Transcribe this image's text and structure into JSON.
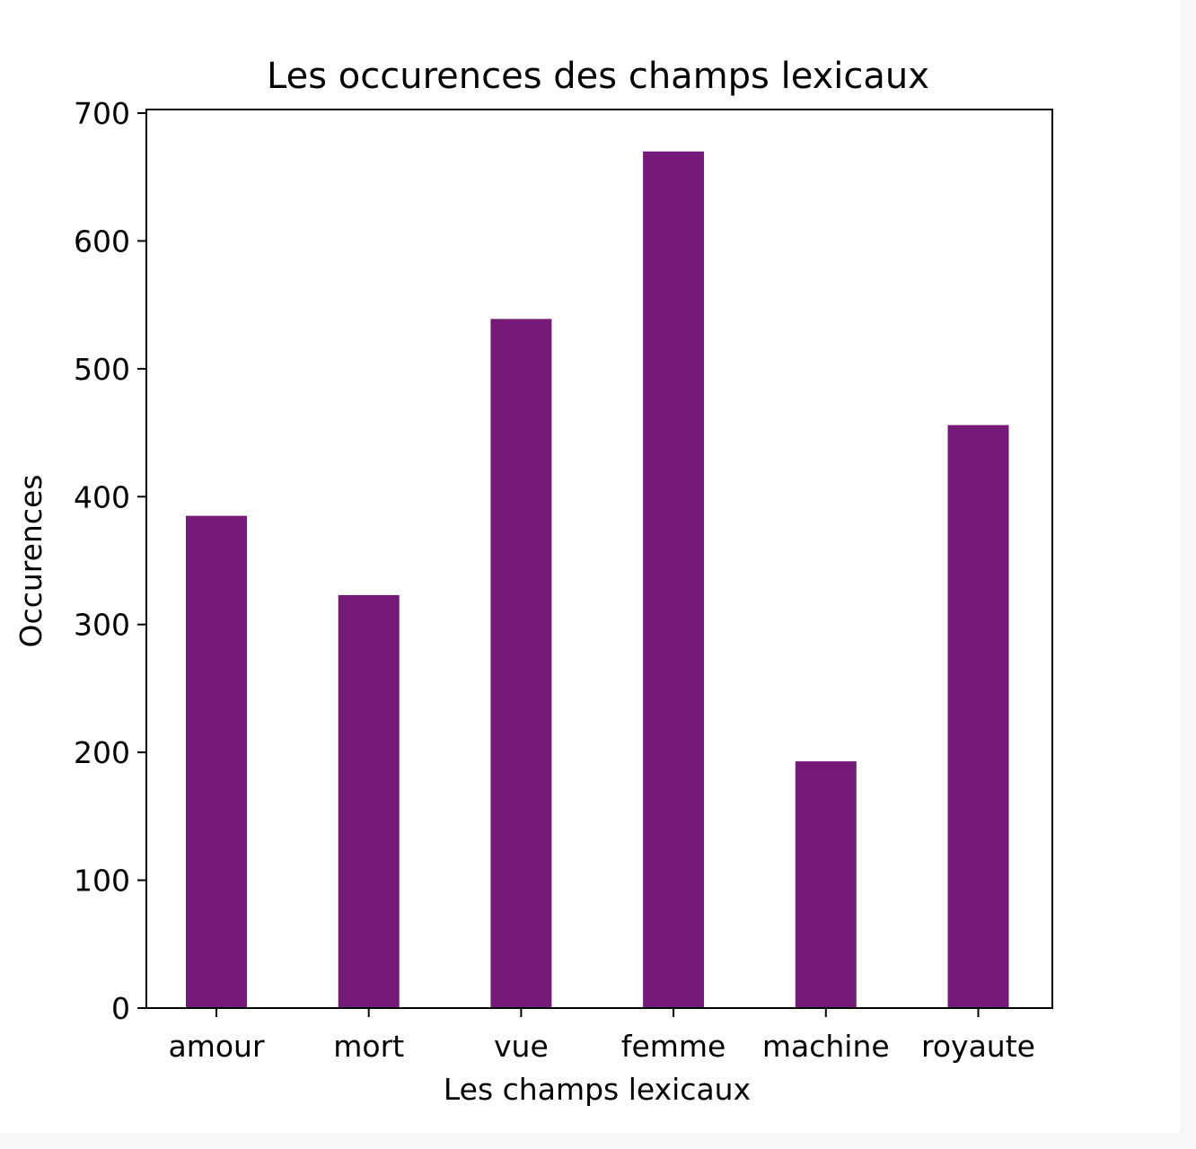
{
  "chart_data": {
    "type": "bar",
    "title": "Les occurences des champs lexicaux",
    "xlabel": "Les champs lexicaux",
    "ylabel": "Occurences",
    "categories": [
      "amour",
      "mort",
      "vue",
      "femme",
      "machine",
      "royaute"
    ],
    "values": [
      385,
      323,
      539,
      670,
      193,
      456
    ],
    "ylim": [
      0,
      700
    ],
    "yticks": [
      0,
      100,
      200,
      300,
      400,
      500,
      600,
      700
    ],
    "ytick_labels": [
      "0",
      "100",
      "200",
      "300",
      "400",
      "500",
      "600",
      "700"
    ],
    "bar_color": "#761a79",
    "grid": false,
    "legend": "none"
  }
}
